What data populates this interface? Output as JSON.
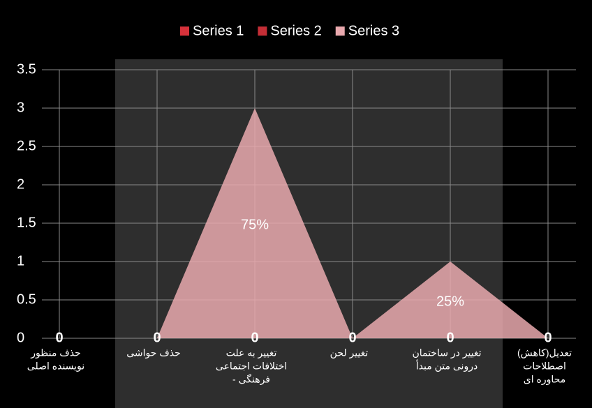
{
  "chart_data": {
    "type": "pyramid",
    "categories": [
      [
        "حذف منظور",
        "نویسنده اصلی"
      ],
      [
        "حذف حواشی"
      ],
      [
        "تغییر به علت",
        "اختلافات اجتماعی",
        "- فرهنگی"
      ],
      [
        "تغییر لحن"
      ],
      [
        "تغییر در ساختمان",
        "درونی متن مبدأ"
      ],
      [
        "تعدیل(کاهش)",
        "اصطلاحات",
        "محاوره ای"
      ]
    ],
    "series": [
      {
        "name": "Series 1",
        "color": "#d6313a",
        "values": [
          0,
          0,
          0,
          0,
          0,
          0
        ]
      },
      {
        "name": "Series 2",
        "color": "#c42e36",
        "values": [
          0,
          0,
          0,
          0,
          0,
          0
        ]
      },
      {
        "name": "Series 3",
        "color": "#e9a9ae",
        "values": [
          0,
          0,
          3,
          0,
          1,
          0
        ]
      }
    ],
    "annotations": [
      {
        "text": "75%",
        "category": 2
      },
      {
        "text": "25%",
        "category": 4
      }
    ],
    "ylim": [
      0,
      3.5
    ],
    "yticks": [
      0,
      0.5,
      1,
      1.5,
      2,
      2.5,
      3,
      3.5
    ],
    "grid": true,
    "legend": "top"
  }
}
